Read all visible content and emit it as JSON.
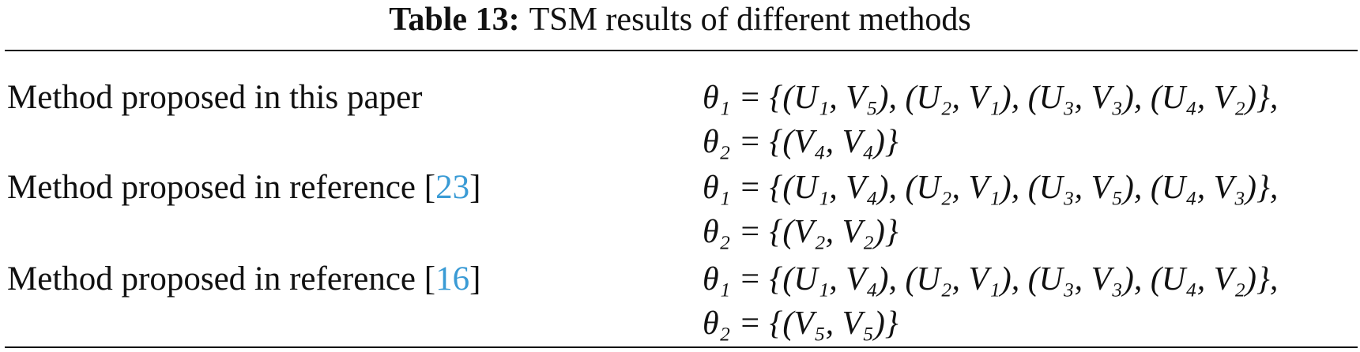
{
  "caption": {
    "label": "Table 13:",
    "title": "TSM results of different methods"
  },
  "table": {
    "rows": [
      {
        "method": {
          "text": "Method proposed in this paper"
        },
        "result": [
          "θ₁ = {(U₁, V₅), (U₂, V₁), (U₃, V₃), (U₄, V₂)},",
          "θ₂ = {(V₄, V₄)}"
        ]
      },
      {
        "method": {
          "text": "Method proposed in reference [",
          "ref": "23",
          "suffix": "]"
        },
        "result": [
          "θ₁ = {(U₁, V₄), (U₂, V₁), (U₃, V₅), (U₄, V₃)},",
          "θ₂ = {(V₂, V₂)}"
        ]
      },
      {
        "method": {
          "text": "Method proposed in reference [",
          "ref": "16",
          "suffix": "]"
        },
        "result": [
          "θ₁ = {(U₁, V₄), (U₂, V₁), (U₃, V₃), (U₄, V₂)},",
          "θ₂ = {(V₅, V₅)}"
        ]
      }
    ]
  }
}
